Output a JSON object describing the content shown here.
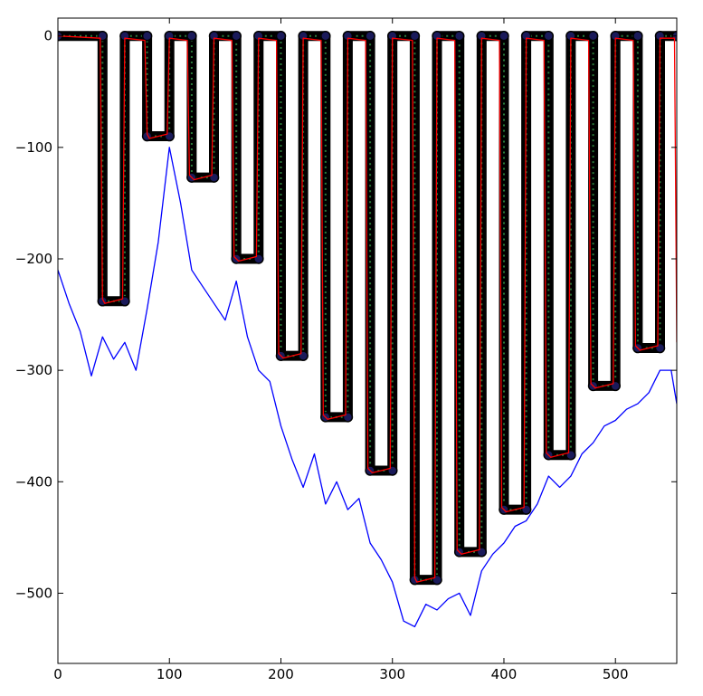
{
  "chart_data": {
    "type": "line",
    "title": "",
    "xlabel": "",
    "ylabel": "",
    "xlim": [
      0,
      555
    ],
    "ylim": [
      -563,
      16
    ],
    "grid": false,
    "legend": "none",
    "x_ticks": [
      {
        "value": 0,
        "label": "0"
      },
      {
        "value": 100,
        "label": "100"
      },
      {
        "value": 200,
        "label": "200"
      },
      {
        "value": 300,
        "label": "300"
      },
      {
        "value": 400,
        "label": "400"
      },
      {
        "value": 500,
        "label": "500"
      }
    ],
    "y_ticks": [
      {
        "value": 0,
        "label": "0"
      },
      {
        "value": -100,
        "label": "−100"
      },
      {
        "value": -200,
        "label": "−200"
      },
      {
        "value": -300,
        "label": "−300"
      },
      {
        "value": -400,
        "label": "−400"
      },
      {
        "value": -500,
        "label": "−500"
      }
    ],
    "series": [
      {
        "color": "#000000",
        "style": "thick-line-with-circle-markers",
        "x": [
          0,
          40,
          40,
          60,
          60,
          80,
          80,
          100,
          100,
          120,
          120,
          140,
          140,
          160,
          160,
          180,
          180,
          200,
          200,
          220,
          220,
          240,
          240,
          260,
          260,
          280,
          280,
          300,
          300,
          320,
          320,
          340,
          340,
          360,
          360,
          380,
          380,
          400,
          400,
          420,
          420,
          440,
          440,
          460,
          460,
          480,
          480,
          500,
          500,
          520,
          520,
          540,
          540,
          555
        ],
        "y": [
          0,
          0,
          -238,
          -238,
          0,
          0,
          -90,
          -90,
          0,
          0,
          -127,
          -127,
          0,
          0,
          -200,
          -200,
          0,
          0,
          -287,
          -287,
          0,
          0,
          -342,
          -342,
          0,
          0,
          -390,
          -390,
          0,
          0,
          -488,
          -488,
          0,
          0,
          -463,
          -463,
          0,
          0,
          -425,
          -425,
          0,
          0,
          -376,
          -376,
          0,
          0,
          -314,
          -314,
          0,
          0,
          -280,
          -280,
          0,
          0
        ]
      },
      {
        "color": "#ff0000",
        "style": "thin-line",
        "x": [
          0,
          38,
          40,
          42,
          58,
          60,
          78,
          80,
          82,
          98,
          100,
          116,
          118,
          122,
          138,
          140,
          156,
          158,
          162,
          178,
          180,
          196,
          198,
          202,
          218,
          220,
          236,
          238,
          242,
          258,
          260,
          276,
          278,
          282,
          298,
          300,
          318,
          320,
          322,
          338,
          340,
          356,
          358,
          362,
          378,
          380,
          396,
          398,
          402,
          418,
          420,
          436,
          438,
          442,
          458,
          460,
          476,
          478,
          482,
          498,
          500,
          516,
          518,
          522,
          538,
          540,
          553,
          555
        ],
        "y": [
          0,
          -2,
          -236,
          -240,
          -236,
          -2,
          -4,
          -88,
          -92,
          -88,
          -2,
          -4,
          -125,
          -129,
          -125,
          -2,
          -4,
          -198,
          -202,
          -198,
          -2,
          -4,
          -285,
          -289,
          -285,
          -2,
          -4,
          -340,
          -344,
          -340,
          -2,
          -4,
          -388,
          -392,
          -388,
          -2,
          -4,
          -486,
          -490,
          -486,
          -2,
          -4,
          -461,
          -465,
          -461,
          -2,
          -4,
          -423,
          -427,
          -423,
          -2,
          -4,
          -374,
          -378,
          -374,
          -2,
          -4,
          -312,
          -316,
          -312,
          -2,
          -4,
          -278,
          -282,
          -278,
          -2,
          -2,
          -275
        ]
      },
      {
        "color": "#0000ff",
        "style": "thin-line",
        "x": [
          0,
          10,
          20,
          30,
          40,
          50,
          60,
          70,
          80,
          90,
          100,
          110,
          120,
          130,
          140,
          150,
          160,
          170,
          180,
          190,
          200,
          210,
          220,
          230,
          240,
          250,
          260,
          270,
          280,
          290,
          300,
          310,
          320,
          330,
          340,
          350,
          360,
          370,
          380,
          390,
          400,
          410,
          420,
          430,
          440,
          450,
          460,
          470,
          480,
          490,
          500,
          510,
          520,
          530,
          540,
          550,
          555
        ],
        "y": [
          -210,
          -240,
          -265,
          -305,
          -270,
          -290,
          -275,
          -300,
          -245,
          -185,
          -100,
          -150,
          -210,
          -225,
          -240,
          -255,
          -220,
          -270,
          -300,
          -310,
          -350,
          -380,
          -405,
          -375,
          -420,
          -400,
          -425,
          -415,
          -455,
          -470,
          -490,
          -525,
          -530,
          -510,
          -515,
          -505,
          -500,
          -520,
          -480,
          -465,
          -455,
          -440,
          -435,
          -420,
          -395,
          -405,
          -395,
          -375,
          -365,
          -350,
          -345,
          -335,
          -330,
          -320,
          -300,
          -300,
          -330
        ]
      }
    ]
  }
}
